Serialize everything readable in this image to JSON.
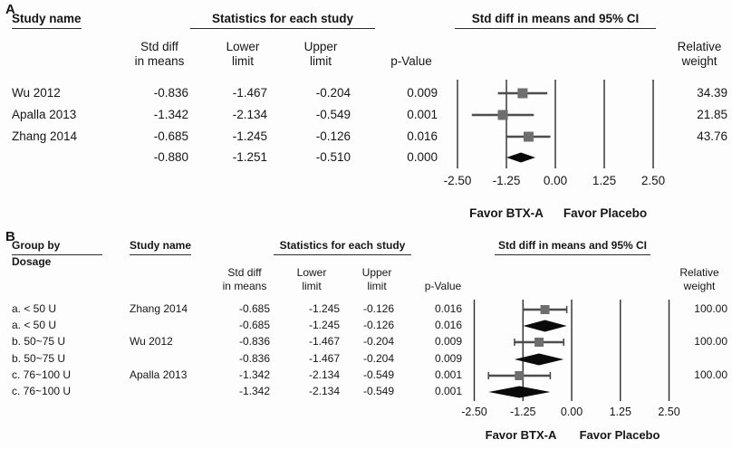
{
  "colors": {
    "background": "#fdfdfd",
    "text": "#161616",
    "axis_line": "#2b2b2b",
    "ci_line": "#4d4d4d",
    "square_marker": "#6e6e6e",
    "diamond": "#0a0a0a",
    "underline": "#2e2e2e"
  },
  "panelA": {
    "label": "A",
    "headers": {
      "study_name": "Study name",
      "stats_group": "Statistics for each study",
      "plot_group": "Std diff in means and 95% CI",
      "std_diff": "Std diff\nin means",
      "lower": "Lower\nlimit",
      "upper": "Upper\nlimit",
      "p_value": "p-Value",
      "weight": "Relative\nweight"
    },
    "rows": [
      {
        "study": "Wu 2012",
        "std": "-0.836",
        "lower": "-1.467",
        "upper": "-0.204",
        "p": "0.009",
        "weight": "34.39",
        "kind": "study"
      },
      {
        "study": "Apalla 2013",
        "std": "-1.342",
        "lower": "-2.134",
        "upper": "-0.549",
        "p": "0.001",
        "weight": "21.85",
        "kind": "study"
      },
      {
        "study": "Zhang 2014",
        "std": "-0.685",
        "lower": "-1.245",
        "upper": "-0.126",
        "p": "0.016",
        "weight": "43.76",
        "kind": "study"
      },
      {
        "study": "",
        "std": "-0.880",
        "lower": "-1.251",
        "upper": "-0.510",
        "p": "0.000",
        "weight": "",
        "kind": "summary"
      }
    ],
    "axis_ticks": [
      "-2.50",
      "-1.25",
      "0.00",
      "1.25",
      "2.50"
    ],
    "favor_left": "Favor BTX-A",
    "favor_right": "Favor Placebo"
  },
  "panelB": {
    "label": "B",
    "headers": {
      "group_by": "Group by",
      "group_by_sub": "Dosage",
      "study_name": "Study name",
      "stats_group": "Statistics for each study",
      "plot_group": "Std diff in means and 95% CI",
      "std_diff": "Std diff\nin means",
      "lower": "Lower\nlimit",
      "upper": "Upper\nlimit",
      "p_value": "p-Value",
      "weight": "Relative\nweight"
    },
    "rows": [
      {
        "group": "a. < 50 U",
        "study": "Zhang 2014",
        "std": "-0.685",
        "lower": "-1.245",
        "upper": "-0.126",
        "p": "0.016",
        "weight": "100.00",
        "kind": "study"
      },
      {
        "group": "a. < 50 U",
        "study": "",
        "std": "-0.685",
        "lower": "-1.245",
        "upper": "-0.126",
        "p": "0.016",
        "weight": "",
        "kind": "summary"
      },
      {
        "group": "b. 50~75 U",
        "study": "Wu 2012",
        "std": "-0.836",
        "lower": "-1.467",
        "upper": "-0.204",
        "p": "0.009",
        "weight": "100.00",
        "kind": "study"
      },
      {
        "group": "b. 50~75 U",
        "study": "",
        "std": "-0.836",
        "lower": "-1.467",
        "upper": "-0.204",
        "p": "0.009",
        "weight": "",
        "kind": "summary"
      },
      {
        "group": "c. 76~100 U",
        "study": "Apalla 2013",
        "std": "-1.342",
        "lower": "-2.134",
        "upper": "-0.549",
        "p": "0.001",
        "weight": "100.00",
        "kind": "study"
      },
      {
        "group": "c. 76~100 U",
        "study": "",
        "std": "-1.342",
        "lower": "-2.134",
        "upper": "-0.549",
        "p": "0.001",
        "weight": "",
        "kind": "summary"
      }
    ],
    "axis_ticks": [
      "-2.50",
      "-1.25",
      "0.00",
      "1.25",
      "2.50"
    ],
    "favor_left": "Favor BTX-A",
    "favor_right": "Favor Placebo"
  },
  "chart_data": [
    {
      "type": "forest",
      "panel": "A",
      "title": "Std diff in means and 95% CI",
      "xlim": [
        -2.5,
        2.5
      ],
      "xticks": [
        -2.5,
        -1.25,
        0.0,
        1.25,
        2.5
      ],
      "xlabel_left": "Favor BTX-A",
      "xlabel_right": "Favor Placebo",
      "studies": [
        {
          "name": "Wu 2012",
          "std_diff_in_means": -0.836,
          "lower_limit": -1.467,
          "upper_limit": -0.204,
          "p_value": 0.009,
          "relative_weight": 34.39
        },
        {
          "name": "Apalla 2013",
          "std_diff_in_means": -1.342,
          "lower_limit": -2.134,
          "upper_limit": -0.549,
          "p_value": 0.001,
          "relative_weight": 21.85
        },
        {
          "name": "Zhang 2014",
          "std_diff_in_means": -0.685,
          "lower_limit": -1.245,
          "upper_limit": -0.126,
          "p_value": 0.016,
          "relative_weight": 43.76
        }
      ],
      "overall": {
        "std_diff_in_means": -0.88,
        "lower_limit": -1.251,
        "upper_limit": -0.51,
        "p_value": 0.0,
        "marker": "diamond"
      }
    },
    {
      "type": "forest",
      "panel": "B",
      "title": "Std diff in means and 95% CI",
      "group_by": "Dosage",
      "xlim": [
        -2.5,
        2.5
      ],
      "xticks": [
        -2.5,
        -1.25,
        0.0,
        1.25,
        2.5
      ],
      "xlabel_left": "Favor BTX-A",
      "xlabel_right": "Favor Placebo",
      "groups": [
        {
          "group": "a. < 50 U",
          "study": "Zhang 2014",
          "std_diff_in_means": -0.685,
          "lower_limit": -1.245,
          "upper_limit": -0.126,
          "p_value": 0.016,
          "relative_weight": 100.0,
          "subtotal": {
            "std_diff_in_means": -0.685,
            "lower_limit": -1.245,
            "upper_limit": -0.126,
            "p_value": 0.016,
            "marker": "diamond"
          }
        },
        {
          "group": "b. 50~75 U",
          "study": "Wu 2012",
          "std_diff_in_means": -0.836,
          "lower_limit": -1.467,
          "upper_limit": -0.204,
          "p_value": 0.009,
          "relative_weight": 100.0,
          "subtotal": {
            "std_diff_in_means": -0.836,
            "lower_limit": -1.467,
            "upper_limit": -0.204,
            "p_value": 0.009,
            "marker": "diamond"
          }
        },
        {
          "group": "c. 76~100 U",
          "study": "Apalla 2013",
          "std_diff_in_means": -1.342,
          "lower_limit": -2.134,
          "upper_limit": -0.549,
          "p_value": 0.001,
          "relative_weight": 100.0,
          "subtotal": {
            "std_diff_in_means": -1.342,
            "lower_limit": -2.134,
            "upper_limit": -0.549,
            "p_value": 0.001,
            "marker": "diamond"
          }
        }
      ]
    }
  ]
}
